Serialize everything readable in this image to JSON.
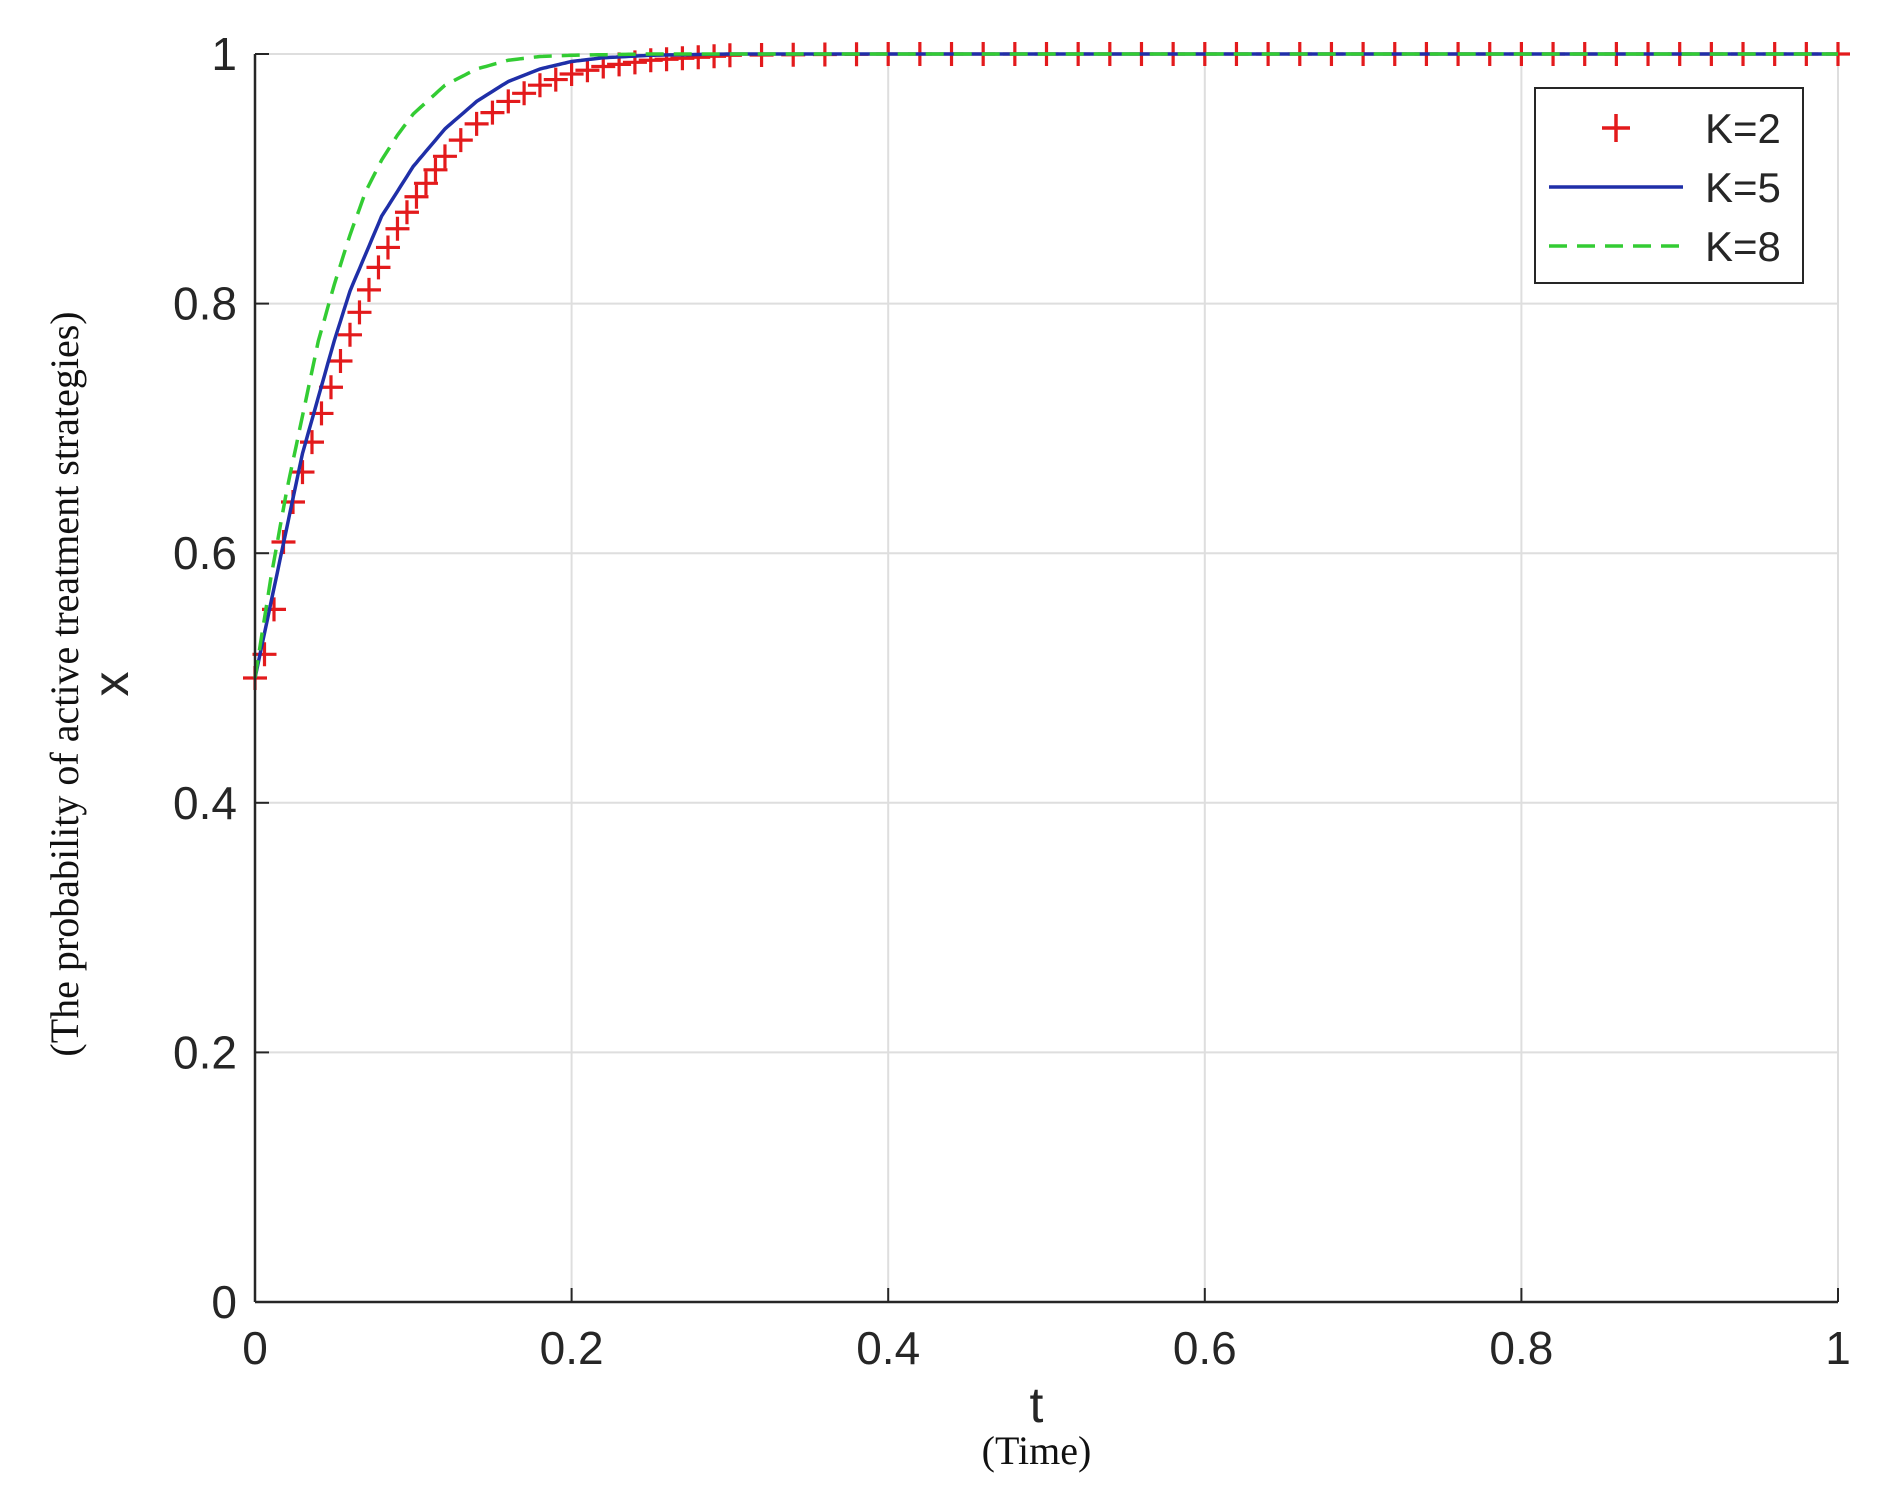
{
  "chart_data": {
    "type": "line",
    "xlabel": "t",
    "xlabel_sub": "(Time)",
    "ylabel": "x",
    "ylabel_sub": "(The probability of active treatment strategies)",
    "xlim": [
      0,
      1
    ],
    "ylim": [
      0,
      1
    ],
    "xticks": [
      0,
      0.2,
      0.4,
      0.6,
      0.8,
      1
    ],
    "yticks": [
      0,
      0.2,
      0.4,
      0.6,
      0.8,
      1
    ],
    "xtick_labels": [
      "0",
      "0.2",
      "0.4",
      "0.6",
      "0.8",
      "1"
    ],
    "ytick_labels": [
      "0",
      "0.2",
      "0.4",
      "0.6",
      "0.8",
      "1"
    ],
    "grid": true,
    "legend_position": "top-right",
    "series": [
      {
        "name": "K=2",
        "style": "marker-plus",
        "color": "#e31a1c",
        "x": [
          0,
          0.005,
          0.01,
          0.015,
          0.02,
          0.03,
          0.04,
          0.05,
          0.06,
          0.07,
          0.08,
          0.09,
          0.1,
          0.12,
          0.14,
          0.16,
          0.18,
          0.2,
          0.22,
          0.25,
          0.3,
          0.4,
          0.5,
          0.6,
          0.7,
          0.8,
          0.9,
          1.0
        ],
        "y": [
          0.5,
          0.515,
          0.535,
          0.585,
          0.625,
          0.665,
          0.705,
          0.74,
          0.775,
          0.805,
          0.835,
          0.86,
          0.882,
          0.918,
          0.944,
          0.962,
          0.975,
          0.984,
          0.99,
          0.995,
          0.999,
          1.0,
          1.0,
          1.0,
          1.0,
          1.0,
          1.0,
          1.0
        ]
      },
      {
        "name": "K=5",
        "style": "solid",
        "color": "#1f2fa8",
        "x": [
          0,
          0.01,
          0.02,
          0.03,
          0.04,
          0.05,
          0.06,
          0.07,
          0.08,
          0.09,
          0.1,
          0.12,
          0.14,
          0.16,
          0.18,
          0.2,
          0.22,
          0.25,
          0.3,
          0.4,
          0.5,
          0.6,
          0.7,
          0.8,
          0.9,
          1.0
        ],
        "y": [
          0.5,
          0.56,
          0.62,
          0.68,
          0.725,
          0.77,
          0.81,
          0.84,
          0.87,
          0.89,
          0.91,
          0.94,
          0.962,
          0.978,
          0.988,
          0.994,
          0.997,
          0.999,
          1.0,
          1.0,
          1.0,
          1.0,
          1.0,
          1.0,
          1.0,
          1.0
        ]
      },
      {
        "name": "K=8",
        "style": "dashed",
        "color": "#33cc33",
        "x": [
          0,
          0.01,
          0.02,
          0.03,
          0.04,
          0.05,
          0.06,
          0.07,
          0.08,
          0.09,
          0.1,
          0.12,
          0.14,
          0.16,
          0.18,
          0.2,
          0.25,
          0.3,
          0.4,
          0.5,
          0.6,
          0.7,
          0.8,
          0.9,
          1.0
        ],
        "y": [
          0.5,
          0.58,
          0.65,
          0.71,
          0.77,
          0.815,
          0.855,
          0.89,
          0.915,
          0.935,
          0.952,
          0.975,
          0.988,
          0.995,
          0.998,
          0.999,
          1.0,
          1.0,
          1.0,
          1.0,
          1.0,
          1.0,
          1.0,
          1.0,
          1.0
        ]
      }
    ]
  }
}
